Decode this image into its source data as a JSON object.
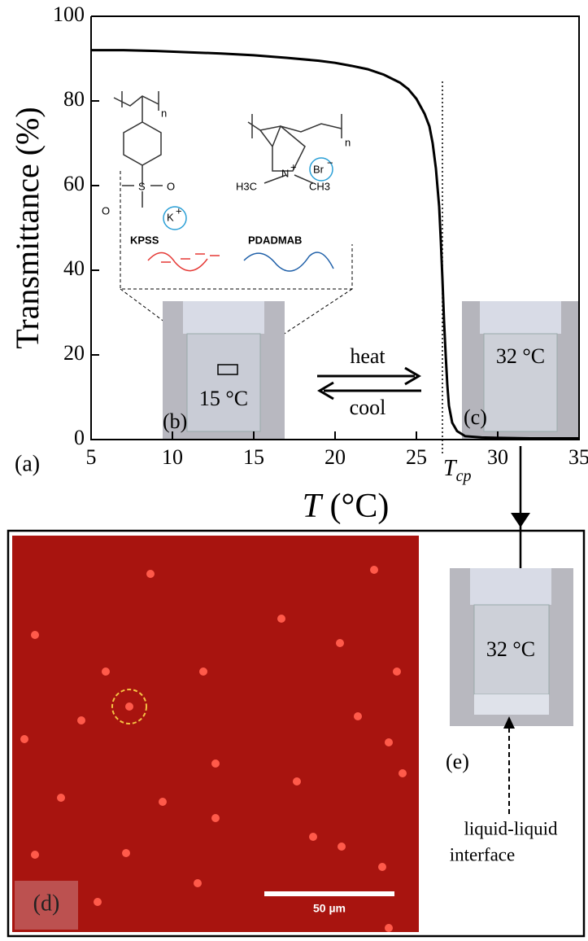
{
  "chart_data": {
    "type": "line",
    "y_label": "Transmittance (%)",
    "x_label": {
      "symbol": "T",
      "unit": "(°C)"
    },
    "x": [
      5,
      7,
      9,
      11,
      13,
      15,
      17,
      19,
      20,
      21,
      22,
      23,
      24,
      24.5,
      25,
      25.5,
      25.8,
      26,
      26.2,
      26.4,
      26.5,
      26.6,
      26.7,
      26.8,
      26.9,
      27,
      27.2,
      27.5,
      28,
      29,
      30,
      32,
      35
    ],
    "values": [
      92,
      92,
      91.8,
      91.5,
      91.2,
      90.8,
      90.2,
      89.5,
      89,
      88.3,
      87.5,
      86.2,
      84.3,
      82.8,
      80.5,
      77,
      74,
      70,
      64,
      55,
      47,
      38,
      28,
      20,
      13,
      8,
      4,
      2,
      0.8,
      0.5,
      0.4,
      0.3,
      0.3
    ],
    "color": "#000000",
    "xlim": [
      5,
      35
    ],
    "ylim": [
      0,
      100
    ],
    "xticks": [
      5,
      10,
      15,
      20,
      25,
      30,
      35
    ],
    "yticks": [
      0,
      20,
      40,
      60,
      80,
      100
    ],
    "cloud_point": {
      "value": 26.6,
      "symbol": "T",
      "subscript": "cp"
    },
    "panel_label": "(a)"
  },
  "structures": {
    "kpss": {
      "name": "KPSS",
      "n": "n",
      "oxygen": "O",
      "sulfur": "S",
      "oxide": "O",
      "ion": "K",
      "charge": "+"
    },
    "pdadmab": {
      "name": "PDADMAB",
      "n": "n",
      "nitrogen": "N",
      "charge": "+",
      "ion": "Br",
      "ion_charge": "−",
      "left_methyl": "H3C",
      "right_methyl": "CH3"
    }
  },
  "photos": {
    "b": {
      "label": "(b)",
      "temperature": "15 °C"
    },
    "c": {
      "label": "(c)",
      "temperature": "32 °C"
    },
    "heat": "heat",
    "cool": "cool"
  },
  "microscopy": {
    "label": "(d)",
    "scale_bar": "50 µm"
  },
  "photo_e": {
    "label": "(e)",
    "temperature": "32 °C",
    "note_line1": "liquid-liquid",
    "note_line2": "interface"
  }
}
